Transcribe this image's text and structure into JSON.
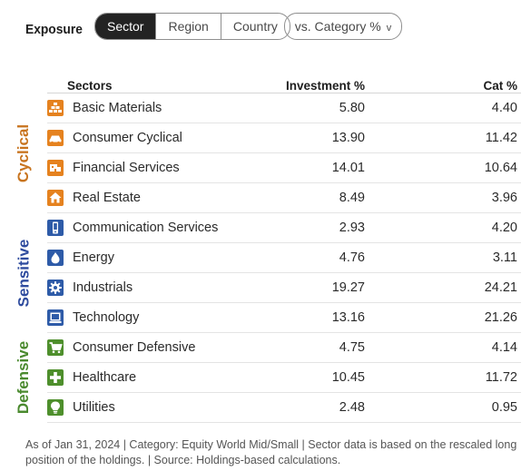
{
  "header": {
    "title": "Exposure",
    "tabs": [
      {
        "label": "Sector",
        "active": true
      },
      {
        "label": "Region",
        "active": false
      },
      {
        "label": "Country",
        "active": false
      }
    ],
    "compare_label": "vs. Category %",
    "compare_chevron": "v"
  },
  "table": {
    "col_sector": "Sectors",
    "col_investment": "Investment %",
    "col_category": "Cat %",
    "groups": [
      {
        "label": "Cyclical",
        "color": "#c8741f"
      },
      {
        "label": "Sensitive",
        "color": "#2e4b9e"
      },
      {
        "label": "Defensive",
        "color": "#4a8a2e"
      }
    ],
    "rows": [
      {
        "name": "Basic Materials",
        "investment": "5.80",
        "category": "4.40",
        "icon": "basic-materials-icon"
      },
      {
        "name": "Consumer Cyclical",
        "investment": "13.90",
        "category": "11.42",
        "icon": "consumer-cyclical-icon"
      },
      {
        "name": "Financial Services",
        "investment": "14.01",
        "category": "10.64",
        "icon": "financial-services-icon"
      },
      {
        "name": "Real Estate",
        "investment": "8.49",
        "category": "3.96",
        "icon": "real-estate-icon"
      },
      {
        "name": "Communication Services",
        "investment": "2.93",
        "category": "4.20",
        "icon": "communication-services-icon"
      },
      {
        "name": "Energy",
        "investment": "4.76",
        "category": "3.11",
        "icon": "energy-icon"
      },
      {
        "name": "Industrials",
        "investment": "19.27",
        "category": "24.21",
        "icon": "industrials-icon"
      },
      {
        "name": "Technology",
        "investment": "13.16",
        "category": "21.26",
        "icon": "technology-icon"
      },
      {
        "name": "Consumer Defensive",
        "investment": "4.75",
        "category": "4.14",
        "icon": "consumer-defensive-icon"
      },
      {
        "name": "Healthcare",
        "investment": "10.45",
        "category": "11.72",
        "icon": "healthcare-icon"
      },
      {
        "name": "Utilities",
        "investment": "2.48",
        "category": "0.95",
        "icon": "utilities-icon"
      }
    ]
  },
  "footnote": "As of Jan 31, 2024 | Category: Equity World Mid/Small | Sector data is based on the rescaled long position of the holdings. | Source: Holdings-based calculations."
}
